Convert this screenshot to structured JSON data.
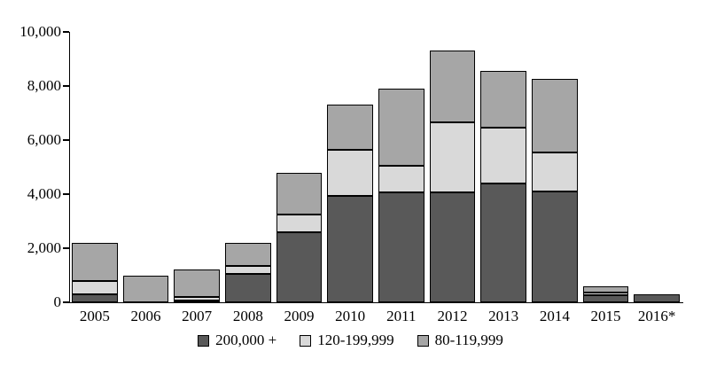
{
  "chart_data": {
    "type": "bar",
    "stacked": true,
    "title": "",
    "xlabel": "",
    "ylabel": "",
    "ylim": [
      0,
      10000
    ],
    "y_ticks": [
      0,
      2000,
      4000,
      6000,
      8000,
      10000
    ],
    "y_tick_labels": [
      "0",
      "2,000",
      "4,000",
      "6,000",
      "8,000",
      "10,000"
    ],
    "grid": false,
    "legend_position": "bottom",
    "categories": [
      "2005",
      "2006",
      "2007",
      "2008",
      "2009",
      "2010",
      "2011",
      "2012",
      "2013",
      "2014",
      "2015",
      "2016*"
    ],
    "series": [
      {
        "name": "200,000 +",
        "color": "#595959",
        "values": [
          300,
          0,
          50,
          1050,
          2600,
          3950,
          4050,
          4050,
          4400,
          4100,
          250,
          300
        ]
      },
      {
        "name": "120-199,999",
        "color": "#d9d9d9",
        "values": [
          500,
          0,
          150,
          300,
          650,
          1700,
          1000,
          2600,
          2050,
          1450,
          100,
          0
        ]
      },
      {
        "name": "80-119,999",
        "color": "#a6a6a6",
        "values": [
          1400,
          1000,
          1000,
          850,
          1550,
          1650,
          2850,
          2650,
          2100,
          2700,
          250,
          0
        ]
      }
    ]
  }
}
